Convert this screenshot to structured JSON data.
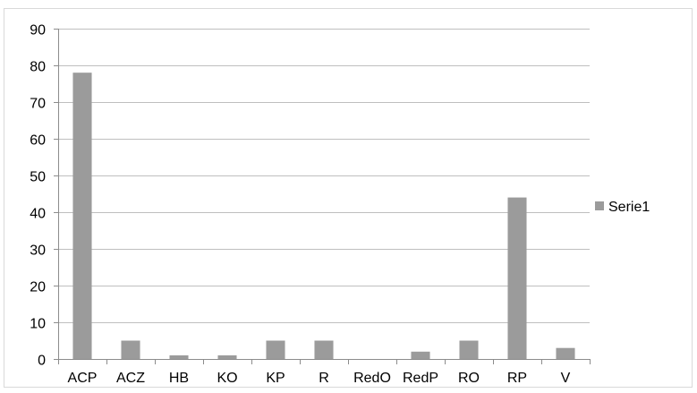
{
  "chart_data": {
    "type": "bar",
    "categories": [
      "ACP",
      "ACZ",
      "HB",
      "KO",
      "KP",
      "R",
      "RedO",
      "RedP",
      "RO",
      "RP",
      "V"
    ],
    "series": [
      {
        "name": "Serie1",
        "values": [
          78,
          5,
          1,
          1,
          5,
          5,
          0,
          2,
          5,
          44,
          3
        ]
      }
    ],
    "title": "",
    "xlabel": "",
    "ylabel": "",
    "ylim": [
      0,
      90
    ],
    "yticks": [
      "0",
      "10",
      "20",
      "30",
      "40",
      "50",
      "60",
      "70",
      "80",
      "90"
    ],
    "grid": true,
    "legend_position": "right",
    "bar_color": "#9b9b9b",
    "grid_color": "#bfbfbf"
  }
}
